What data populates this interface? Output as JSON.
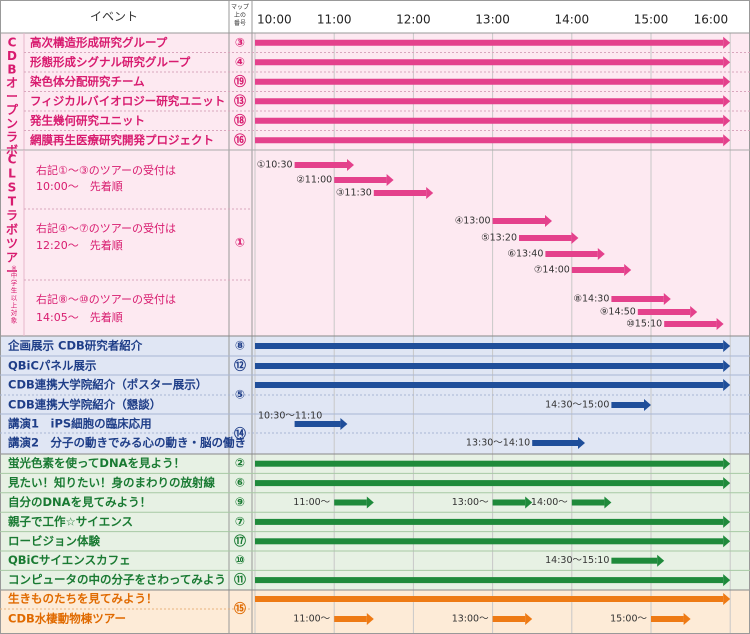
{
  "header": {
    "event_label": "イベント",
    "map_label": "マップ上の番号",
    "times": [
      "10:00",
      "11:00",
      "12:00",
      "13:00",
      "14:00",
      "15:00",
      "16:00"
    ]
  },
  "colors": {
    "pink": "#e4418c",
    "pink_bg": "#fde9f1",
    "pink_text": "#d81b6f",
    "blue": "#1f4e9a",
    "blue_bg": "#e0e6f4",
    "blue_text": "#1f3e88",
    "green": "#1f8a3b",
    "green_bg": "#e7f1e4",
    "green_text": "#197a32",
    "orange": "#ee7a14",
    "orange_bg": "#fdebd7",
    "orange_text": "#e06a00",
    "grid": "#c8c8c8",
    "dotted": "#d9a6bd"
  },
  "sections": {
    "cdb_open_lab": {
      "title": "CDBオープンラボ",
      "rows": [
        {
          "label": "高次構造形成研究グループ",
          "map_no": "③"
        },
        {
          "label": "形態形成シグナル研究グループ",
          "map_no": "④"
        },
        {
          "label": "染色体分配研究チーム",
          "map_no": "⑲"
        },
        {
          "label": "フィジカルバイオロジー研究ユニット",
          "map_no": "⑬"
        },
        {
          "label": "発生幾何研究ユニット",
          "map_no": "⑱"
        },
        {
          "label": "網膜再生医療研究開発プロジェクト",
          "map_no": "⑯"
        }
      ]
    },
    "clst_tour": {
      "title": "CLSTラボツアー",
      "note": "※中学生以上対象",
      "map_no": "①",
      "groups": [
        {
          "line1": "右記①〜③のツアーの受付は",
          "line2": "10:00〜　先着順"
        },
        {
          "line1": "右記④〜⑦のツアーの受付は",
          "line2": "12:20〜　先着順"
        },
        {
          "line1": "右記⑧〜⑩のツアーの受付は",
          "line2": "14:05〜　先着順"
        }
      ],
      "tours": [
        {
          "label": "①10:30",
          "start": "10:30",
          "end": "11:15"
        },
        {
          "label": "②11:00",
          "start": "11:00",
          "end": "11:45"
        },
        {
          "label": "③11:30",
          "start": "11:30",
          "end": "12:15"
        },
        {
          "label": "④13:00",
          "start": "13:00",
          "end": "13:45"
        },
        {
          "label": "⑤13:20",
          "start": "13:20",
          "end": "14:05"
        },
        {
          "label": "⑥13:40",
          "start": "13:40",
          "end": "14:25"
        },
        {
          "label": "⑦14:00",
          "start": "14:00",
          "end": "14:45"
        },
        {
          "label": "⑧14:30",
          "start": "14:30",
          "end": "15:15"
        },
        {
          "label": "⑨14:50",
          "start": "14:50",
          "end": "15:35"
        },
        {
          "label": "⑩15:10",
          "start": "15:10",
          "end": "15:55"
        }
      ]
    },
    "blue": {
      "rows": [
        {
          "label": "企画展示 CDB研究者紹介",
          "map_no": "⑧"
        },
        {
          "label": "QBiCパネル展示",
          "map_no": "⑫"
        },
        {
          "label": "CDB連携大学院紹介（ポスター展示）",
          "map_no": "⑤"
        },
        {
          "label": "CDB連携大学院紹介（懇談）",
          "map_no": ""
        },
        {
          "label": "講演1　iPS細胞の臨床応用",
          "map_no": "⑭"
        },
        {
          "label": "講演2　分子の動きでみる心の動き・脳の働き",
          "map_no": ""
        }
      ],
      "session_labels": {
        "consult": "14:30〜15:00",
        "lecture1": "10:30〜11:10",
        "lecture2": "13:30〜14:10"
      }
    },
    "green": {
      "rows": [
        {
          "label": "蛍光色素を使ってDNAを見よう！",
          "map_no": "②"
        },
        {
          "label": "見たい！知りたい！身のまわりの放射線",
          "map_no": "⑥"
        },
        {
          "label": "自分のDNAを見てみよう！",
          "map_no": "⑨"
        },
        {
          "label": "親子で工作☆サイエンス",
          "map_no": "⑦"
        },
        {
          "label": "ロービジョン体験",
          "map_no": "⑰"
        },
        {
          "label": "QBiCサイエンスカフェ",
          "map_no": "⑩"
        },
        {
          "label": "コンピュータの中の分子をさわってみよう",
          "map_no": "⑪"
        }
      ],
      "session_labels": {
        "dna1": "11:00〜",
        "dna2": "13:00〜",
        "dna3": "14:00〜",
        "cafe": "14:30〜15:10"
      }
    },
    "orange": {
      "map_no": "⑮",
      "rows": [
        {
          "label": "生きものたちを見てみよう！"
        },
        {
          "label": "CDB水棲動物棟ツアー"
        }
      ],
      "session_labels": {
        "tour1": "11:00〜",
        "tour2": "13:00〜",
        "tour3": "15:00〜"
      }
    }
  }
}
